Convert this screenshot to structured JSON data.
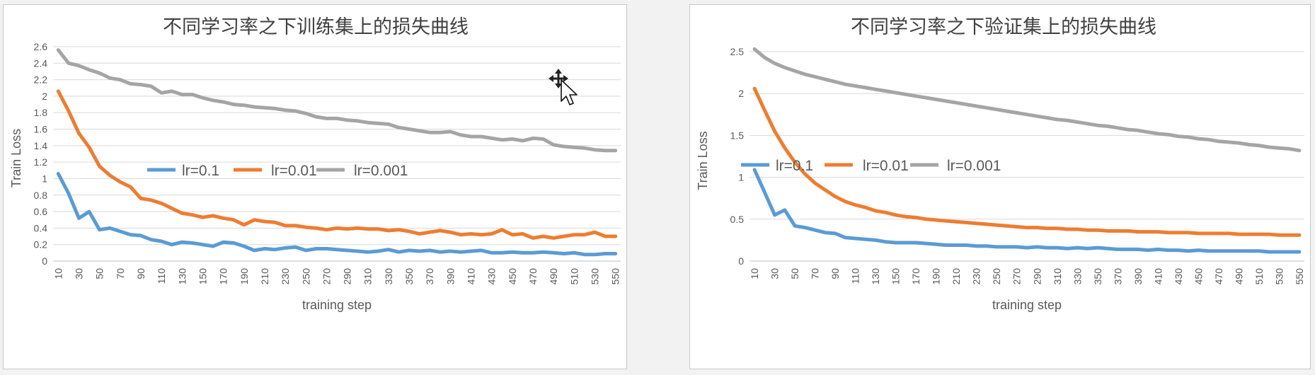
{
  "colors": {
    "lr_0_1": "#5b9bd5",
    "lr_0_01": "#ed7d31",
    "lr_0_001": "#a5a5a5",
    "grid": "#d9d9d9",
    "text": "#595959"
  },
  "cursor": {
    "icon": "move-cursor-icon"
  },
  "chart_data": [
    {
      "type": "line",
      "title": "不同学习率之下训练集上的损失曲线",
      "xlabel": "training   step",
      "ylabel": "Train  Loss",
      "ylim": [
        0,
        2.6
      ],
      "yticks": [
        0,
        0.2,
        0.4,
        0.6,
        0.8,
        1,
        1.2,
        1.4,
        1.6,
        1.8,
        2,
        2.2,
        2.4,
        2.6
      ],
      "ytick_labels": [
        "0",
        "0.2",
        "0.4",
        "0.6",
        "0.8",
        "1",
        "1.2",
        "1.4",
        "1.6",
        "1.8",
        "2",
        "2.2",
        "2.4",
        "2.6"
      ],
      "x": [
        10,
        20,
        30,
        40,
        50,
        60,
        70,
        80,
        90,
        100,
        110,
        120,
        130,
        140,
        150,
        160,
        170,
        180,
        190,
        200,
        210,
        220,
        230,
        240,
        250,
        260,
        270,
        280,
        290,
        300,
        310,
        320,
        330,
        340,
        350,
        360,
        370,
        380,
        390,
        400,
        410,
        420,
        430,
        440,
        450,
        460,
        470,
        480,
        490,
        500,
        510,
        520,
        530,
        540,
        550
      ],
      "x_tick_labels": [
        "10",
        "30",
        "50",
        "70",
        "90",
        "110",
        "130",
        "150",
        "170",
        "190",
        "210",
        "230",
        "250",
        "270",
        "290",
        "310",
        "330",
        "350",
        "370",
        "390",
        "410",
        "430",
        "450",
        "470",
        "490",
        "510",
        "530",
        "550"
      ],
      "grid": "horizontal",
      "legend": "center",
      "series": [
        {
          "name": "lr=0.1",
          "values": [
            1.06,
            0.82,
            0.52,
            0.6,
            0.38,
            0.4,
            0.36,
            0.32,
            0.31,
            0.26,
            0.24,
            0.2,
            0.23,
            0.22,
            0.2,
            0.18,
            0.23,
            0.22,
            0.18,
            0.13,
            0.15,
            0.14,
            0.16,
            0.17,
            0.13,
            0.15,
            0.15,
            0.14,
            0.13,
            0.12,
            0.11,
            0.12,
            0.14,
            0.11,
            0.13,
            0.12,
            0.13,
            0.11,
            0.12,
            0.11,
            0.12,
            0.13,
            0.1,
            0.1,
            0.11,
            0.1,
            0.1,
            0.11,
            0.1,
            0.09,
            0.1,
            0.08,
            0.08,
            0.09,
            0.09
          ]
        },
        {
          "name": "lr=0.01",
          "values": [
            2.06,
            1.82,
            1.55,
            1.38,
            1.15,
            1.04,
            0.96,
            0.9,
            0.76,
            0.74,
            0.7,
            0.64,
            0.58,
            0.56,
            0.53,
            0.55,
            0.52,
            0.5,
            0.44,
            0.5,
            0.48,
            0.47,
            0.43,
            0.43,
            0.41,
            0.4,
            0.38,
            0.4,
            0.39,
            0.4,
            0.39,
            0.39,
            0.37,
            0.38,
            0.36,
            0.33,
            0.35,
            0.37,
            0.35,
            0.32,
            0.33,
            0.32,
            0.33,
            0.38,
            0.32,
            0.33,
            0.28,
            0.3,
            0.28,
            0.3,
            0.32,
            0.32,
            0.35,
            0.3,
            0.3
          ]
        },
        {
          "name": "lr=0.001",
          "values": [
            2.56,
            2.4,
            2.37,
            2.32,
            2.28,
            2.22,
            2.2,
            2.15,
            2.14,
            2.12,
            2.04,
            2.06,
            2.02,
            2.02,
            1.98,
            1.95,
            1.93,
            1.9,
            1.89,
            1.87,
            1.86,
            1.85,
            1.83,
            1.82,
            1.79,
            1.75,
            1.73,
            1.73,
            1.71,
            1.7,
            1.68,
            1.67,
            1.66,
            1.62,
            1.6,
            1.58,
            1.56,
            1.56,
            1.57,
            1.53,
            1.51,
            1.51,
            1.49,
            1.47,
            1.48,
            1.46,
            1.49,
            1.48,
            1.41,
            1.39,
            1.38,
            1.37,
            1.35,
            1.34,
            1.34
          ]
        }
      ]
    },
    {
      "type": "line",
      "title": "不同学习率之下验证集上的损失曲线",
      "xlabel": "training   step",
      "ylabel": "Train  Loss",
      "ylim": [
        0,
        2.5
      ],
      "yticks": [
        0,
        0.5,
        1,
        1.5,
        2,
        2.5
      ],
      "ytick_labels": [
        "0",
        "0.5",
        "1",
        "1.5",
        "2",
        "2.5"
      ],
      "x": [
        10,
        20,
        30,
        40,
        50,
        60,
        70,
        80,
        90,
        100,
        110,
        120,
        130,
        140,
        150,
        160,
        170,
        180,
        190,
        200,
        210,
        220,
        230,
        240,
        250,
        260,
        270,
        280,
        290,
        300,
        310,
        320,
        330,
        340,
        350,
        360,
        370,
        380,
        390,
        400,
        410,
        420,
        430,
        440,
        450,
        460,
        470,
        480,
        490,
        500,
        510,
        520,
        530,
        540,
        550
      ],
      "x_tick_labels": [
        "10",
        "30",
        "50",
        "70",
        "90",
        "110",
        "130",
        "150",
        "170",
        "190",
        "210",
        "230",
        "250",
        "270",
        "290",
        "310",
        "330",
        "350",
        "370",
        "390",
        "410",
        "430",
        "450",
        "470",
        "490",
        "510",
        "530",
        "550"
      ],
      "grid": "horizontal",
      "legend": "center",
      "series": [
        {
          "name": "lr=0.1",
          "values": [
            1.09,
            0.82,
            0.55,
            0.61,
            0.42,
            0.4,
            0.37,
            0.34,
            0.33,
            0.28,
            0.27,
            0.26,
            0.25,
            0.23,
            0.22,
            0.22,
            0.22,
            0.21,
            0.2,
            0.19,
            0.19,
            0.19,
            0.18,
            0.18,
            0.17,
            0.17,
            0.17,
            0.16,
            0.17,
            0.16,
            0.16,
            0.15,
            0.16,
            0.15,
            0.16,
            0.15,
            0.14,
            0.14,
            0.14,
            0.13,
            0.14,
            0.13,
            0.13,
            0.12,
            0.13,
            0.12,
            0.12,
            0.12,
            0.12,
            0.12,
            0.12,
            0.11,
            0.11,
            0.11,
            0.11
          ]
        },
        {
          "name": "lr=0.01",
          "values": [
            2.06,
            1.8,
            1.55,
            1.35,
            1.18,
            1.04,
            0.93,
            0.85,
            0.77,
            0.71,
            0.67,
            0.64,
            0.6,
            0.58,
            0.55,
            0.53,
            0.52,
            0.5,
            0.49,
            0.48,
            0.47,
            0.46,
            0.45,
            0.44,
            0.43,
            0.42,
            0.41,
            0.4,
            0.4,
            0.39,
            0.39,
            0.38,
            0.38,
            0.37,
            0.37,
            0.36,
            0.36,
            0.36,
            0.35,
            0.35,
            0.35,
            0.34,
            0.34,
            0.34,
            0.33,
            0.33,
            0.33,
            0.33,
            0.32,
            0.32,
            0.32,
            0.32,
            0.31,
            0.31,
            0.31
          ]
        },
        {
          "name": "lr=0.001",
          "values": [
            2.53,
            2.43,
            2.36,
            2.31,
            2.27,
            2.23,
            2.2,
            2.17,
            2.14,
            2.11,
            2.09,
            2.07,
            2.05,
            2.03,
            2.01,
            1.99,
            1.97,
            1.95,
            1.93,
            1.91,
            1.89,
            1.87,
            1.85,
            1.83,
            1.81,
            1.79,
            1.77,
            1.75,
            1.73,
            1.71,
            1.69,
            1.68,
            1.66,
            1.64,
            1.62,
            1.61,
            1.59,
            1.57,
            1.56,
            1.54,
            1.52,
            1.51,
            1.49,
            1.48,
            1.46,
            1.45,
            1.43,
            1.42,
            1.41,
            1.39,
            1.38,
            1.36,
            1.35,
            1.34,
            1.32
          ]
        }
      ]
    }
  ]
}
